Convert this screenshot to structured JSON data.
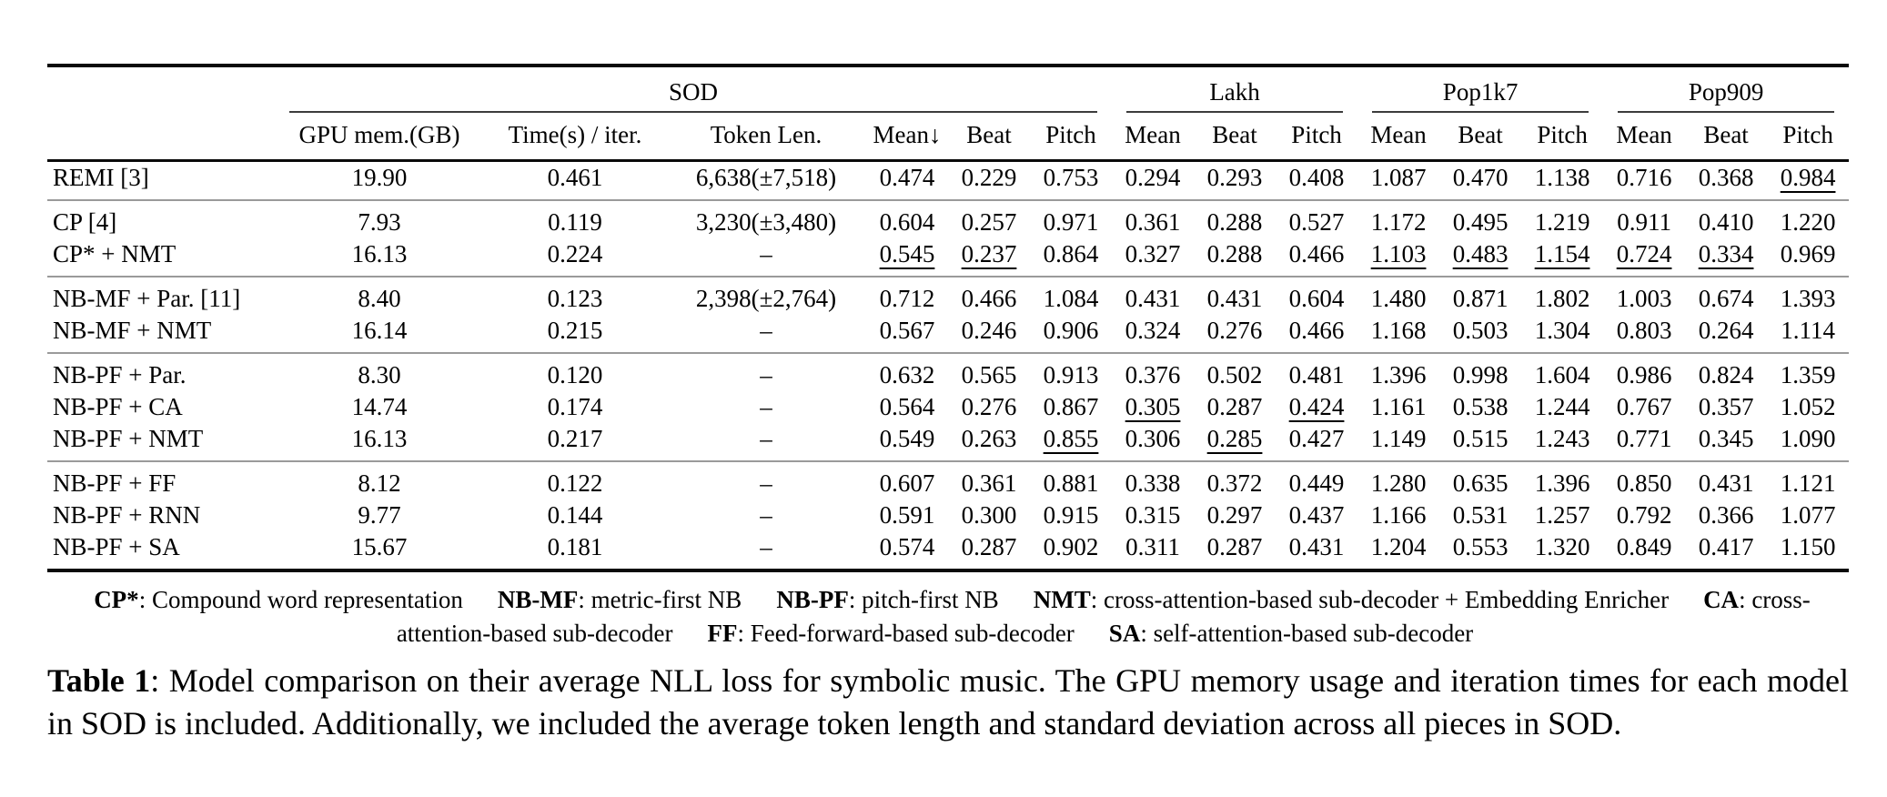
{
  "table": {
    "groups": [
      {
        "label": "SOD",
        "span": 6
      },
      {
        "label": "Lakh",
        "span": 3
      },
      {
        "label": "Pop1k7",
        "span": 3
      },
      {
        "label": "Pop909",
        "span": 3
      }
    ],
    "columns": [
      "GPU mem.(GB)",
      "Time(s) / iter.",
      "Token Len.",
      "Mean↓",
      "Beat",
      "Pitch",
      "Mean",
      "Beat",
      "Pitch",
      "Mean",
      "Beat",
      "Pitch",
      "Mean",
      "Beat",
      "Pitch"
    ],
    "row_groups": [
      {
        "rows": [
          {
            "model": "REMI [3]",
            "cells": [
              "19.90",
              "0.461",
              "6,638(±7,518)",
              [
                "0.474",
                "b"
              ],
              [
                "0.229",
                "b"
              ],
              [
                "0.753",
                "b"
              ],
              [
                "0.294",
                "b"
              ],
              "0.293",
              [
                "0.408",
                "b"
              ],
              [
                "1.087",
                "b"
              ],
              [
                "0.470",
                "b"
              ],
              [
                "1.138",
                "b"
              ],
              [
                "0.716",
                "b"
              ],
              "0.368",
              [
                "0.984",
                "u"
              ]
            ]
          }
        ]
      },
      {
        "rows": [
          {
            "model": "CP [4]",
            "cells": [
              "7.93",
              "0.119",
              "3,230(±3,480)",
              "0.604",
              "0.257",
              "0.971",
              "0.361",
              "0.288",
              "0.527",
              "1.172",
              "0.495",
              "1.219",
              "0.911",
              "0.410",
              "1.220"
            ]
          },
          {
            "model": "CP* + NMT",
            "cells": [
              "16.13",
              "0.224",
              "–",
              [
                "0.545",
                "u"
              ],
              [
                "0.237",
                "u"
              ],
              "0.864",
              "0.327",
              "0.288",
              "0.466",
              [
                "1.103",
                "u"
              ],
              [
                "0.483",
                "u"
              ],
              [
                "1.154",
                "u"
              ],
              [
                "0.724",
                "u"
              ],
              [
                "0.334",
                "u"
              ],
              [
                "0.969",
                "b"
              ]
            ]
          }
        ]
      },
      {
        "rows": [
          {
            "model": "NB-MF + Par. [11]",
            "cells": [
              "8.40",
              "0.123",
              "2,398(±2,764)",
              "0.712",
              "0.466",
              "1.084",
              "0.431",
              "0.431",
              "0.604",
              "1.480",
              "0.871",
              "1.802",
              "1.003",
              "0.674",
              "1.393"
            ]
          },
          {
            "model": "NB-MF + NMT",
            "cells": [
              "16.14",
              "0.215",
              "–",
              "0.567",
              "0.246",
              "0.906",
              "0.324",
              [
                "0.276",
                "b"
              ],
              "0.466",
              "1.168",
              "0.503",
              "1.304",
              "0.803",
              [
                "0.264",
                "b"
              ],
              "1.114"
            ]
          }
        ]
      },
      {
        "rows": [
          {
            "model": "NB-PF + Par.",
            "cells": [
              "8.30",
              "0.120",
              "–",
              "0.632",
              "0.565",
              "0.913",
              "0.376",
              "0.502",
              "0.481",
              "1.396",
              "0.998",
              "1.604",
              "0.986",
              "0.824",
              "1.359"
            ]
          },
          {
            "model": "NB-PF + CA",
            "cells": [
              "14.74",
              "0.174",
              "–",
              "0.564",
              "0.276",
              "0.867",
              [
                "0.305",
                "u"
              ],
              "0.287",
              [
                "0.424",
                "u"
              ],
              "1.161",
              "0.538",
              "1.244",
              "0.767",
              "0.357",
              "1.052"
            ]
          },
          {
            "model": "NB-PF + NMT",
            "cells": [
              "16.13",
              "0.217",
              "–",
              "0.549",
              "0.263",
              [
                "0.855",
                "u"
              ],
              "0.306",
              [
                "0.285",
                "u"
              ],
              "0.427",
              "1.149",
              "0.515",
              "1.243",
              "0.771",
              "0.345",
              "1.090"
            ]
          }
        ]
      },
      {
        "rows": [
          {
            "model": "NB-PF + FF",
            "cells": [
              "8.12",
              "0.122",
              "–",
              "0.607",
              "0.361",
              "0.881",
              "0.338",
              "0.372",
              "0.449",
              "1.280",
              "0.635",
              "1.396",
              "0.850",
              "0.431",
              "1.121"
            ]
          },
          {
            "model": "NB-PF + RNN",
            "cells": [
              "9.77",
              "0.144",
              "–",
              "0.591",
              "0.300",
              "0.915",
              "0.315",
              "0.297",
              "0.437",
              "1.166",
              "0.531",
              "1.257",
              "0.792",
              "0.366",
              "1.077"
            ]
          },
          {
            "model": "NB-PF + SA",
            "cells": [
              "15.67",
              "0.181",
              "–",
              "0.574",
              "0.287",
              "0.902",
              "0.311",
              "0.287",
              "0.431",
              "1.204",
              "0.553",
              "1.320",
              "0.849",
              "0.417",
              "1.150"
            ]
          }
        ]
      }
    ]
  },
  "footnote": {
    "items": [
      {
        "term": "CP*",
        "desc": ": Compound word representation"
      },
      {
        "term": "NB-MF",
        "desc": ": metric-first NB"
      },
      {
        "term": "NB-PF",
        "desc": ": pitch-first NB"
      },
      {
        "term": "NMT",
        "desc": ": cross-attention-based sub-decoder + Embedding Enricher"
      },
      {
        "term": "CA",
        "desc": ": cross-attention-based sub-decoder"
      },
      {
        "term": "FF",
        "desc": ": Feed-forward-based sub-decoder"
      },
      {
        "term": "SA",
        "desc": ": self-attention-based sub-decoder"
      }
    ]
  },
  "caption": {
    "label": "Table 1",
    "text": ": Model comparison on their average NLL loss for symbolic music. The GPU memory usage and iteration times for each model in SOD is included. Additionally, we included the average token length and standard deviation across all pieces in SOD."
  }
}
